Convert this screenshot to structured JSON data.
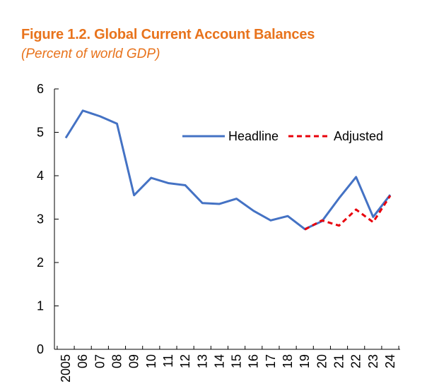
{
  "chart_data": {
    "type": "line",
    "title": "Figure 1.2. Global Current Account Balances",
    "subtitle": "(Percent of world GDP)",
    "xlabel": "",
    "ylabel": "",
    "ylim": [
      0,
      6
    ],
    "yticks": [
      "0",
      "1",
      "2",
      "3",
      "4",
      "5",
      "6"
    ],
    "categories": [
      "2005",
      "06",
      "07",
      "08",
      "09",
      "10",
      "11",
      "12",
      "13",
      "14",
      "15",
      "16",
      "17",
      "18",
      "19",
      "20",
      "21",
      "22",
      "23",
      "24"
    ],
    "legend_position": "top-right",
    "series": [
      {
        "name": "Headline",
        "color": "#4472c4",
        "style": "solid",
        "values": [
          4.87,
          5.5,
          5.37,
          5.2,
          3.55,
          3.95,
          3.83,
          3.78,
          3.37,
          3.35,
          3.47,
          3.19,
          2.97,
          3.07,
          2.77,
          2.95,
          3.48,
          3.97,
          3.05,
          3.56
        ]
      },
      {
        "name": "Adjusted",
        "color": "#e8000b",
        "style": "dashed",
        "values": [
          null,
          null,
          null,
          null,
          null,
          null,
          null,
          null,
          null,
          null,
          null,
          null,
          null,
          null,
          2.76,
          2.97,
          2.85,
          3.22,
          2.93,
          3.54
        ]
      }
    ]
  }
}
